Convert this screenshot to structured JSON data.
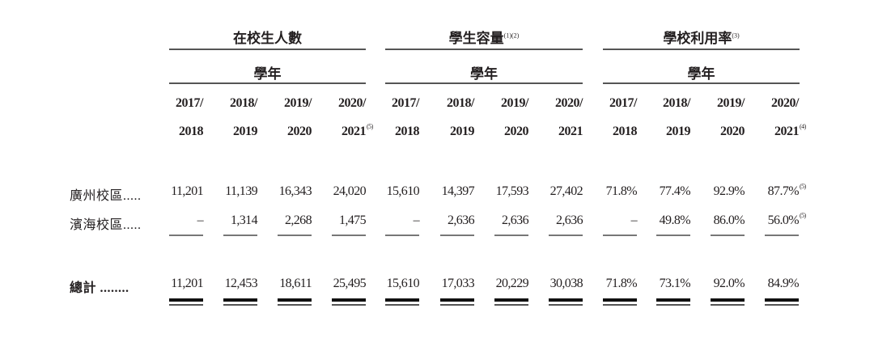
{
  "groups": [
    {
      "title": "在校生人數",
      "note": "",
      "subtitle": "學年"
    },
    {
      "title": "學生容量",
      "note": "(1)(2)",
      "subtitle": "學年"
    },
    {
      "title": "學校利用率",
      "note": "(3)",
      "subtitle": "學年"
    }
  ],
  "years": [
    {
      "top": "2017/",
      "bottom": "2018",
      "note": ""
    },
    {
      "top": "2018/",
      "bottom": "2019",
      "note": ""
    },
    {
      "top": "2019/",
      "bottom": "2020",
      "note": ""
    },
    {
      "top": "2020/",
      "bottom": "2021",
      "note": "(5)"
    },
    {
      "top": "2017/",
      "bottom": "2018",
      "note": ""
    },
    {
      "top": "2018/",
      "bottom": "2019",
      "note": ""
    },
    {
      "top": "2019/",
      "bottom": "2020",
      "note": ""
    },
    {
      "top": "2020/",
      "bottom": "2021",
      "note": ""
    },
    {
      "top": "2017/",
      "bottom": "2018",
      "note": ""
    },
    {
      "top": "2018/",
      "bottom": "2019",
      "note": ""
    },
    {
      "top": "2019/",
      "bottom": "2020",
      "note": ""
    },
    {
      "top": "2020/",
      "bottom": "2021",
      "note": "(4)"
    }
  ],
  "rows": [
    {
      "label": "廣州校區.....",
      "values": [
        "11,201",
        "11,139",
        "16,343",
        "24,020",
        "15,610",
        "14,397",
        "17,593",
        "27,402",
        "71.8%",
        "77.4%",
        "92.9%",
        "87.7%"
      ],
      "notes": [
        "",
        "",
        "",
        "",
        "",
        "",
        "",
        "",
        "",
        "",
        "",
        "(5)"
      ]
    },
    {
      "label": "濱海校區.....",
      "values": [
        "–",
        "1,314",
        "2,268",
        "1,475",
        "–",
        "2,636",
        "2,636",
        "2,636",
        "–",
        "49.8%",
        "86.0%",
        "56.0%"
      ],
      "notes": [
        "",
        "",
        "",
        "",
        "",
        "",
        "",
        "",
        "",
        "",
        "",
        "(5)"
      ]
    },
    {
      "label": "總計 ........",
      "values": [
        "11,201",
        "12,453",
        "18,611",
        "25,495",
        "15,610",
        "17,033",
        "20,229",
        "30,038",
        "71.8%",
        "73.1%",
        "92.0%",
        "84.9%"
      ],
      "notes": [
        "",
        "",
        "",
        "",
        "",
        "",
        "",
        "",
        "",
        "",
        "",
        ""
      ]
    }
  ]
}
